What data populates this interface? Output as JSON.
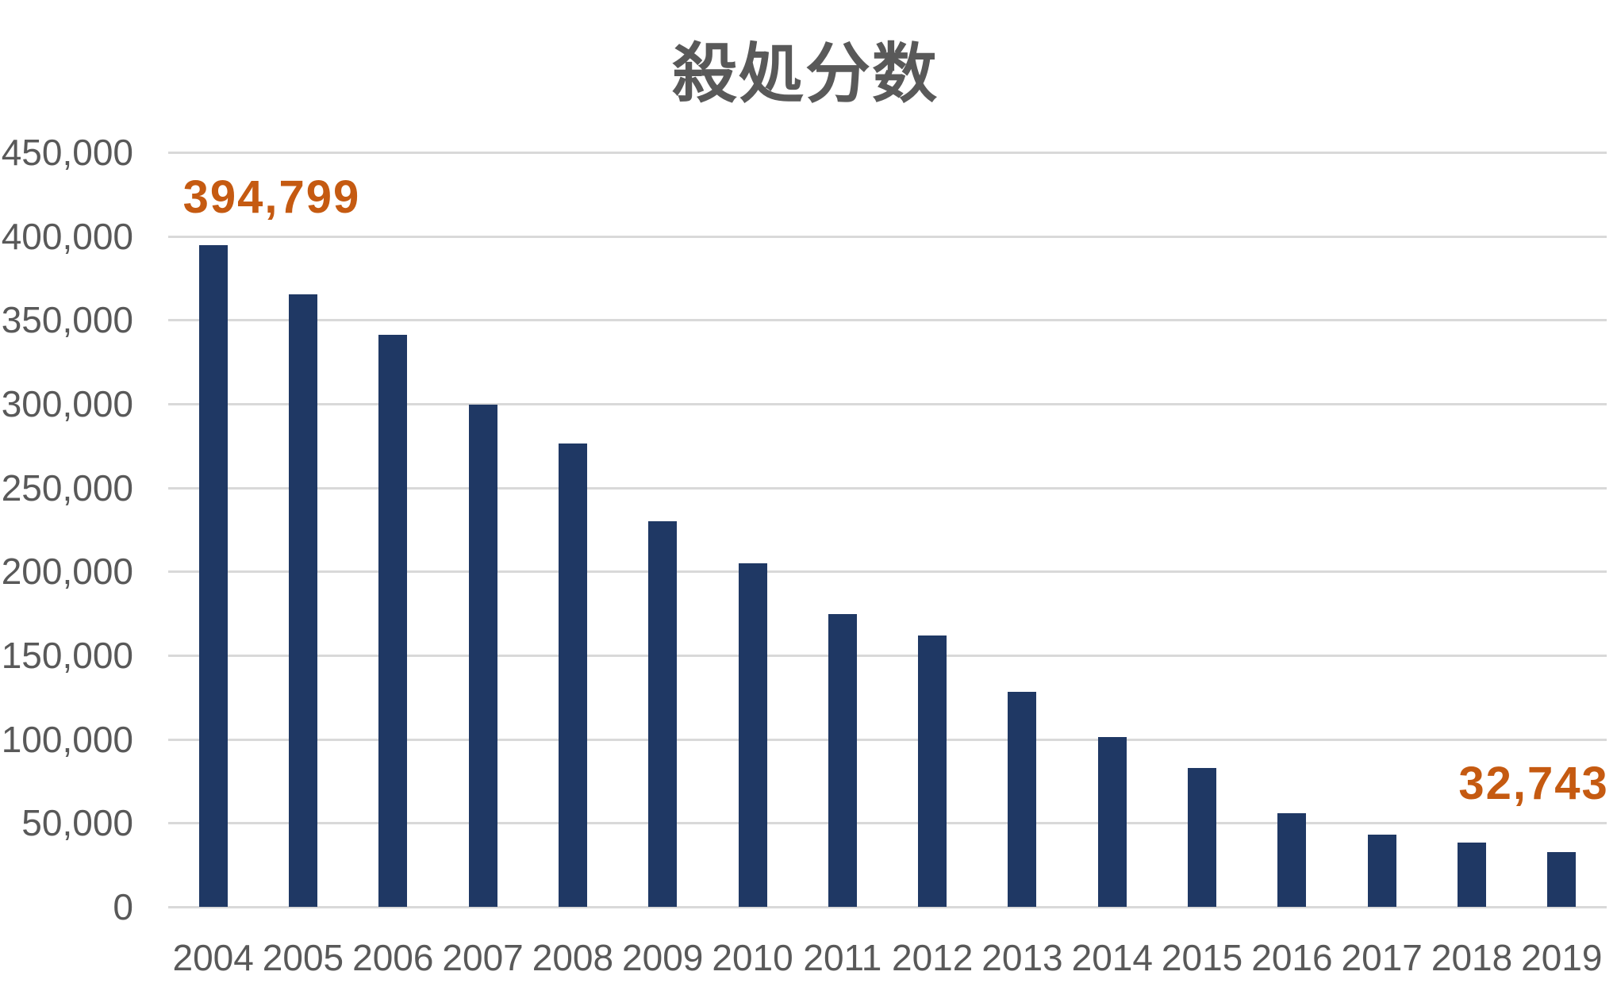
{
  "chart_data": {
    "type": "bar",
    "title": "殺処分数",
    "xlabel": "",
    "ylabel": "",
    "categories": [
      "2004",
      "2005",
      "2006",
      "2007",
      "2008",
      "2009",
      "2010",
      "2011",
      "2012",
      "2013",
      "2014",
      "2015",
      "2016",
      "2017",
      "2018",
      "2019"
    ],
    "values": [
      394799,
      365233,
      341063,
      299342,
      276212,
      229907,
      204693,
      174742,
      161847,
      128241,
      101338,
      82902,
      55998,
      43216,
      38444,
      32743
    ],
    "ylim": [
      0,
      450000
    ],
    "y_ticks": [
      {
        "value": 0,
        "label": "0"
      },
      {
        "value": 50000,
        "label": "50,000"
      },
      {
        "value": 100000,
        "label": "100,000"
      },
      {
        "value": 150000,
        "label": "150,000"
      },
      {
        "value": 200000,
        "label": "200,000"
      },
      {
        "value": 250000,
        "label": "250,000"
      },
      {
        "value": 300000,
        "label": "300,000"
      },
      {
        "value": 350000,
        "label": "350,000"
      },
      {
        "value": 400000,
        "label": "400,000"
      },
      {
        "value": 450000,
        "label": "450,000"
      }
    ],
    "grid": "horizontal",
    "legend": "none",
    "annotations": [
      {
        "category": "2004",
        "text": "394,799"
      },
      {
        "category": "2019",
        "text": "32,743"
      }
    ],
    "colors": {
      "bar": "#1F3864",
      "annotation": "#C55A11",
      "title_text": "#595959",
      "axis_text": "#595959",
      "gridline": "#D9D9D9",
      "background": "#FFFFFF"
    }
  }
}
